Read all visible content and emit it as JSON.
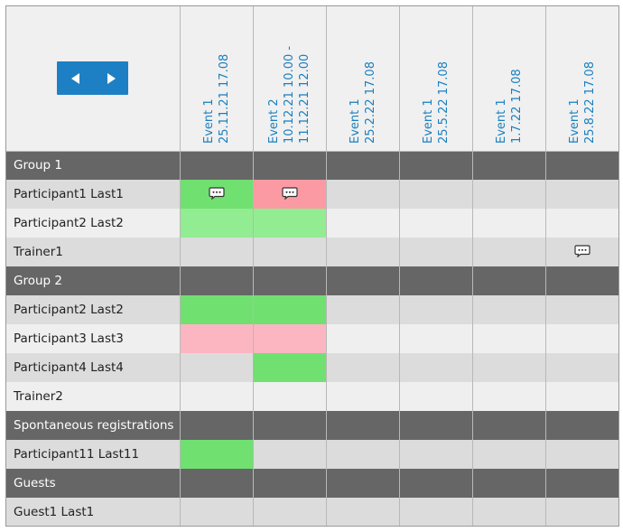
{
  "header": {
    "nav": {
      "prev_icon": "chevron-left-icon",
      "next_icon": "chevron-right-icon"
    },
    "columns": [
      {
        "line1": "Event 1",
        "line2": "25.11.21 17.08"
      },
      {
        "line1": "Event 2",
        "line2": "10.12.21 10.00 -",
        "line3": "11.12.21 12.00"
      },
      {
        "line1": "Event 1",
        "line2": "25.2.22 17.08"
      },
      {
        "line1": "Event 1",
        "line2": "25.5.22 17.08"
      },
      {
        "line1": "Event 1",
        "line2": "1.7.22 17.08"
      },
      {
        "line1": "Event 1",
        "line2": "25.8.22 17.08"
      }
    ]
  },
  "rows": [
    {
      "type": "group",
      "label": "Group 1"
    },
    {
      "type": "person",
      "label": "Participant1 Last1",
      "cells": [
        {
          "status": "present",
          "comment": true
        },
        {
          "status": "excused",
          "comment": true
        },
        {
          "status": "none"
        },
        {
          "status": "none"
        },
        {
          "status": "none"
        },
        {
          "status": "none"
        }
      ]
    },
    {
      "type": "person",
      "label": "Participant2 Last2",
      "cells": [
        {
          "status": "light"
        },
        {
          "status": "light"
        },
        {
          "status": "none"
        },
        {
          "status": "none"
        },
        {
          "status": "none"
        },
        {
          "status": "none"
        }
      ]
    },
    {
      "type": "person",
      "label": "Trainer1",
      "cells": [
        {
          "status": "none"
        },
        {
          "status": "none"
        },
        {
          "status": "none"
        },
        {
          "status": "none"
        },
        {
          "status": "none"
        },
        {
          "status": "none",
          "comment": true
        }
      ]
    },
    {
      "type": "group",
      "label": "Group 2"
    },
    {
      "type": "person",
      "label": "Participant2 Last2",
      "cells": [
        {
          "status": "present"
        },
        {
          "status": "present"
        },
        {
          "status": "none"
        },
        {
          "status": "none"
        },
        {
          "status": "none"
        },
        {
          "status": "none"
        }
      ]
    },
    {
      "type": "person",
      "label": "Participant3 Last3",
      "cells": [
        {
          "status": "absent"
        },
        {
          "status": "absent"
        },
        {
          "status": "none"
        },
        {
          "status": "none"
        },
        {
          "status": "none"
        },
        {
          "status": "none"
        }
      ]
    },
    {
      "type": "person",
      "label": "Participant4 Last4",
      "cells": [
        {
          "status": "none"
        },
        {
          "status": "present"
        },
        {
          "status": "none"
        },
        {
          "status": "none"
        },
        {
          "status": "none"
        },
        {
          "status": "none"
        }
      ]
    },
    {
      "type": "person",
      "label": "Trainer2",
      "cells": [
        {
          "status": "none"
        },
        {
          "status": "none"
        },
        {
          "status": "none"
        },
        {
          "status": "none"
        },
        {
          "status": "none"
        },
        {
          "status": "none"
        }
      ]
    },
    {
      "type": "group",
      "label": "Spontaneous registrations"
    },
    {
      "type": "person",
      "label": "Participant11 Last11",
      "cells": [
        {
          "status": "present"
        },
        {
          "status": "none"
        },
        {
          "status": "none"
        },
        {
          "status": "none"
        },
        {
          "status": "none"
        },
        {
          "status": "none"
        }
      ]
    },
    {
      "type": "group",
      "label": "Guests"
    },
    {
      "type": "person",
      "label": "Guest1 Last1",
      "cells": [
        {
          "status": "none"
        },
        {
          "status": "none"
        },
        {
          "status": "none"
        },
        {
          "status": "none"
        },
        {
          "status": "none"
        },
        {
          "status": "none"
        }
      ]
    }
  ],
  "colors": {
    "header_bg": "#f0f0f0",
    "group_bg": "#666666",
    "row_odd": "#dcdcdc",
    "row_even": "#efefef",
    "present": "#70e070",
    "light": "#92ec92",
    "excused": "#fc9aa4",
    "absent": "#fcb6c2",
    "accent": "#1e80c4"
  }
}
